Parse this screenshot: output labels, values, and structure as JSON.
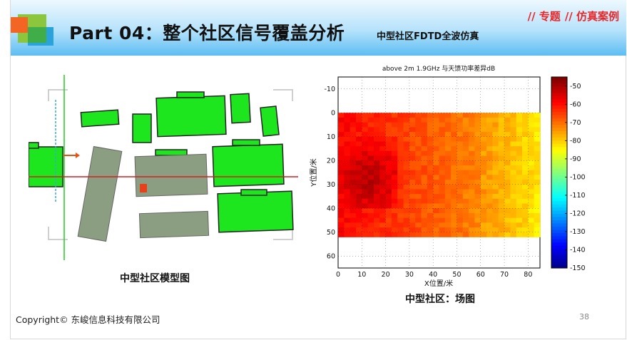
{
  "header": {
    "title": "Part 04：整个社区信号覆盖分析",
    "subtitle": "中型社区FDTD全波仿真",
    "tag_1": "// 专题",
    "tag_2": "// 仿真案例"
  },
  "left_panel": {
    "caption": "中型社区模型图"
  },
  "right_panel": {
    "caption": "中型社区：场图"
  },
  "chart_data": {
    "type": "heatmap",
    "title": "above 2m 1.9GHz 与天馈功率差异dB",
    "xlabel": "X位置/米",
    "ylabel": "Y位置/米",
    "x_ticks": [
      0,
      10,
      20,
      30,
      40,
      50,
      60,
      70,
      80
    ],
    "y_ticks": [
      -10,
      0,
      10,
      20,
      30,
      40,
      50,
      60
    ],
    "xlim": [
      0,
      85
    ],
    "ylim": [
      -15,
      65
    ],
    "y_reversed": true,
    "colorbar": {
      "ticks": [
        -50,
        -60,
        -70,
        -80,
        -90,
        -100,
        -110,
        -120,
        -130,
        -140,
        -150
      ],
      "range": [
        -150,
        -45
      ],
      "colormap": "jet"
    },
    "data_region": {
      "x": [
        0,
        85
      ],
      "y": [
        0,
        52
      ]
    },
    "strong_region": {
      "x": [
        0,
        25
      ],
      "y": [
        10,
        40
      ],
      "level": -50
    },
    "weak_region": {
      "x": [
        60,
        85
      ],
      "y": [
        0,
        50
      ],
      "level": -82
    }
  },
  "footer": {
    "copyright": "Copyright© 东峻信息科技有限公司",
    "page_number": "38"
  },
  "colors": {
    "accent_red": "#e8262a",
    "building_green": "#1ee61e",
    "building_gray": "#8c9e82",
    "header_blue": "#5cbdf2"
  }
}
